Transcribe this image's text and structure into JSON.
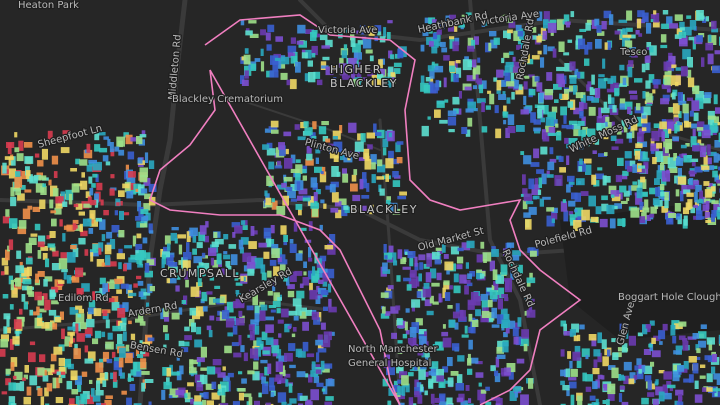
{
  "labels": [
    {
      "text": "Heaton Park"
    },
    {
      "text": "Middleton Rd"
    },
    {
      "text": "Victoria Ave"
    },
    {
      "text": "Victoria Ave"
    },
    {
      "text": "Heathbank Rd"
    },
    {
      "text": "Tesco"
    },
    {
      "text": "HIGHER"
    },
    {
      "text": "BLACKLEY"
    },
    {
      "text": "Blackley Crematorium"
    },
    {
      "text": "Plinton Ave"
    },
    {
      "text": "Rochdale Rd"
    },
    {
      "text": "White Moss Rd"
    },
    {
      "text": "Sheepfoot Ln"
    },
    {
      "text": "BLACKLEY"
    },
    {
      "text": "Old Market St"
    },
    {
      "text": "Rochdale Rd"
    },
    {
      "text": "Polefield Rd"
    },
    {
      "text": "Boggart Hole Clough"
    },
    {
      "text": "CRUMPSALL"
    },
    {
      "text": "Edilom Rd"
    },
    {
      "text": "Kearsley Rd"
    },
    {
      "text": "Ardern Rd"
    },
    {
      "text": "Bensen Rd"
    },
    {
      "text": "North Manchester"
    },
    {
      "text": "General Hospital"
    },
    {
      "text": "Glen Ave"
    }
  ]
}
